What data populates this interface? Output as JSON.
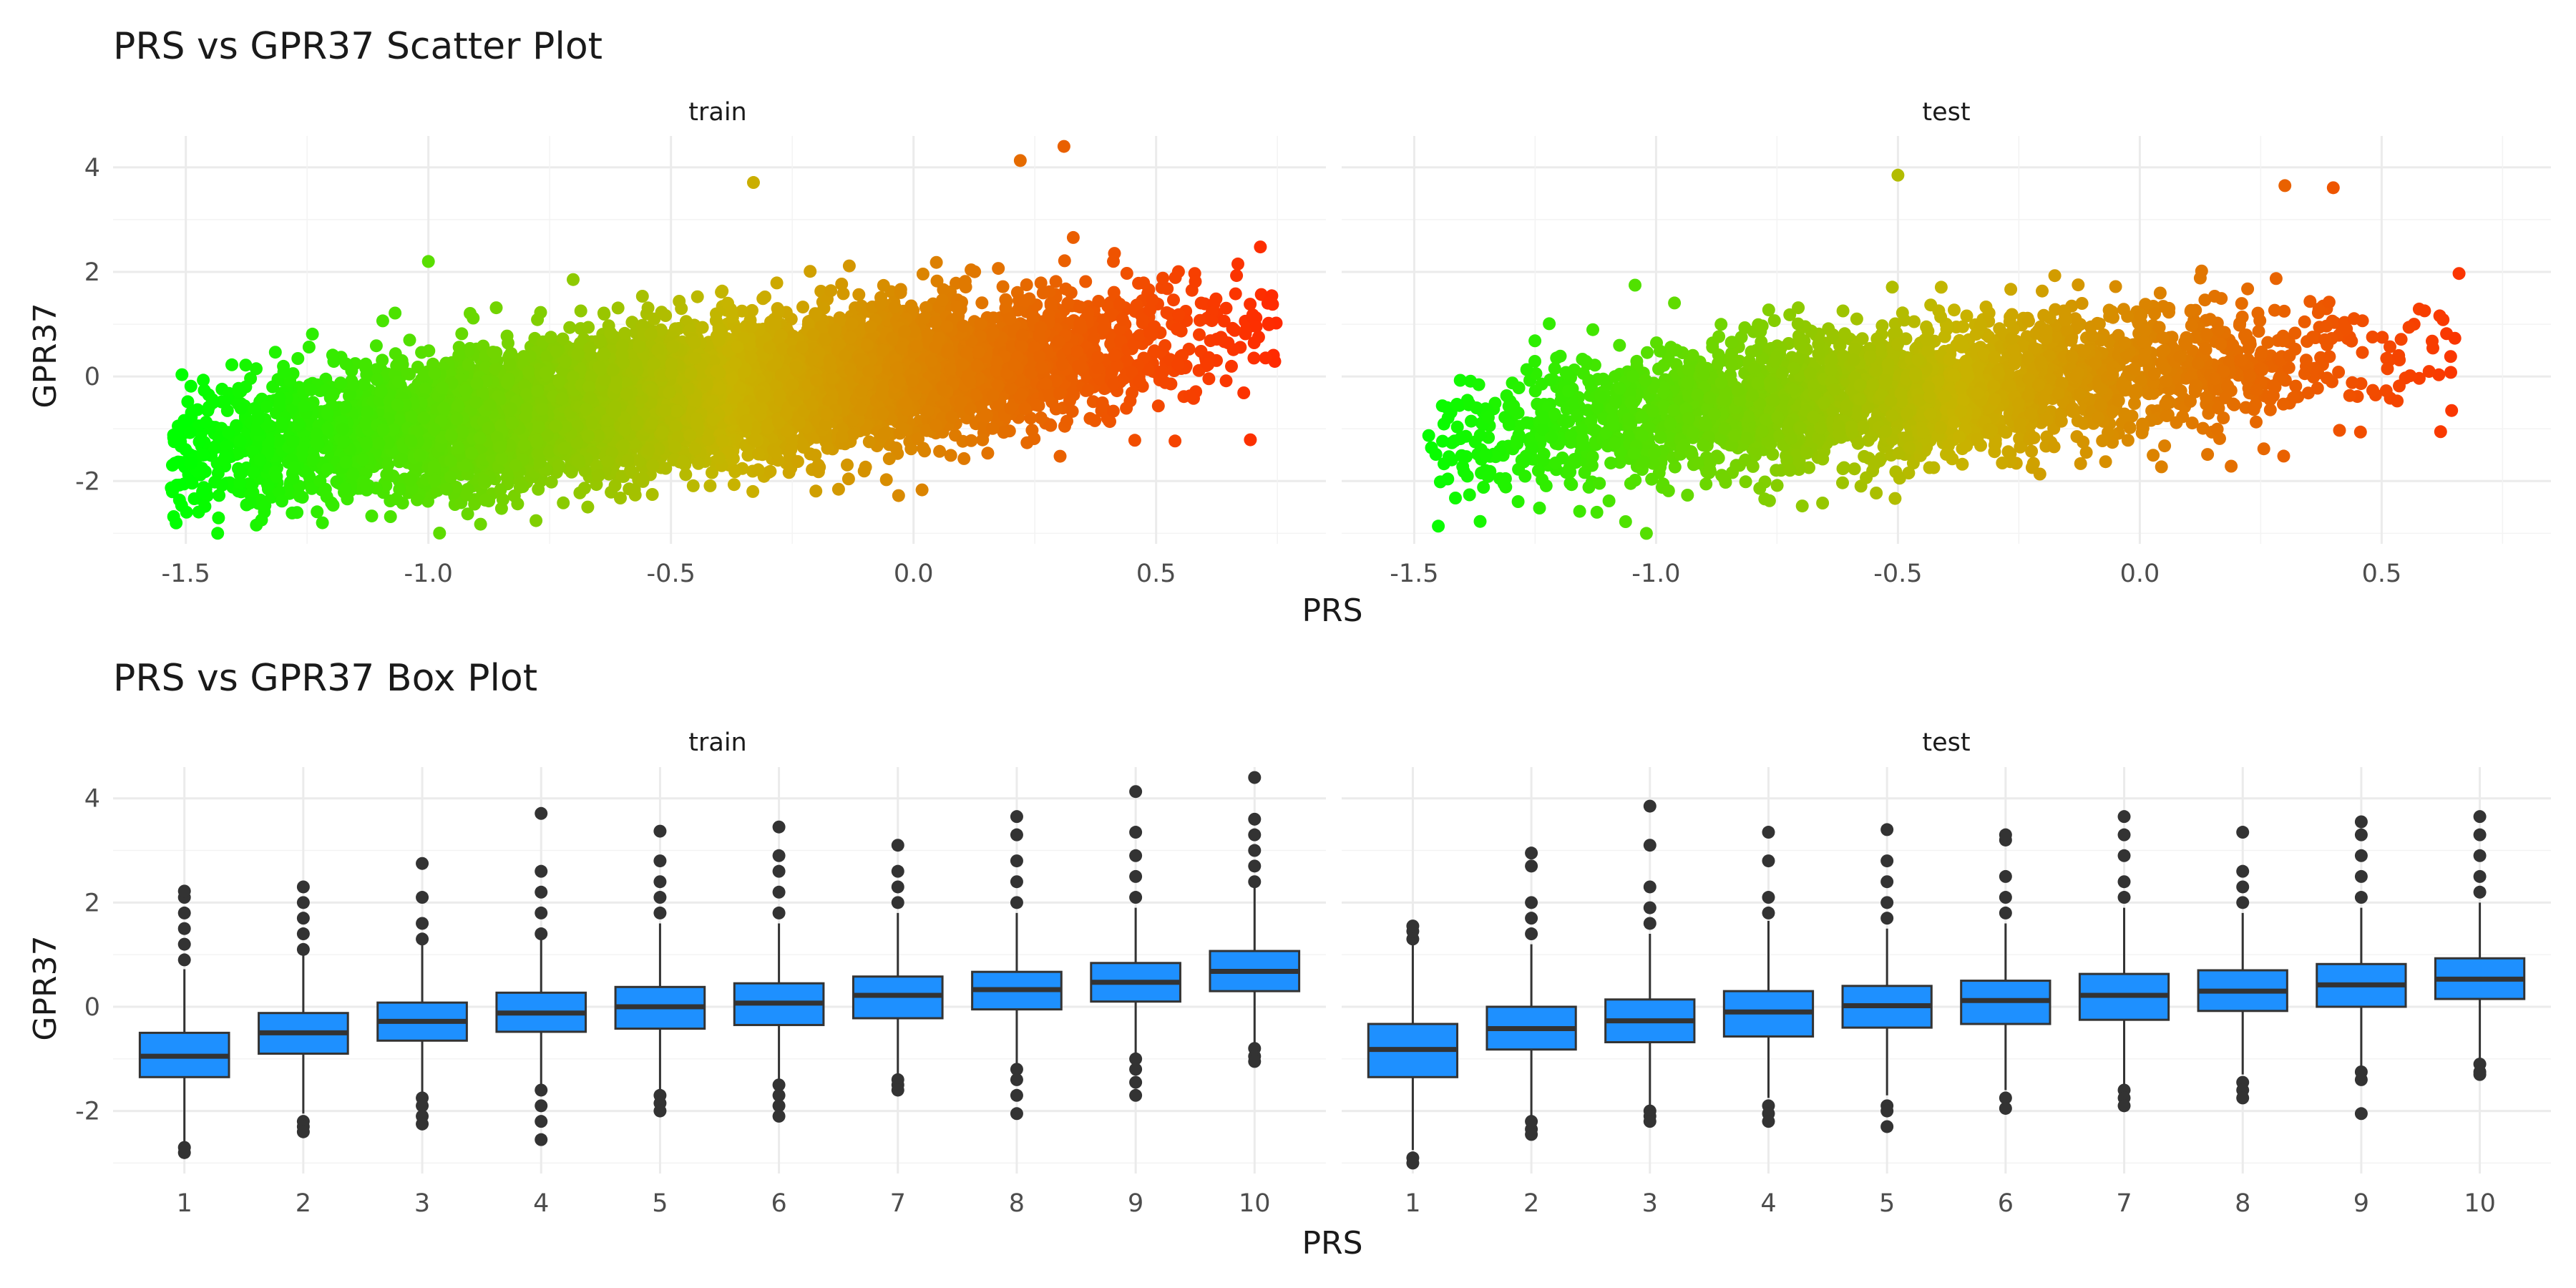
{
  "chart_data": [
    {
      "type": "scatter",
      "title": "PRS vs GPR37 Scatter Plot",
      "xlabel": "PRS",
      "ylabel": "GPR37",
      "panels": [
        "train",
        "test"
      ],
      "xlim": [
        -1.65,
        0.85
      ],
      "ylim": [
        -3.2,
        4.6
      ],
      "x_ticks": [
        -1.5,
        -1.0,
        -0.5,
        0.0,
        0.5
      ],
      "x_tick_labels": [
        "-1.5",
        "-1.0",
        "-0.5",
        "0.0",
        "0.5"
      ],
      "y_ticks": [
        -2,
        0,
        2,
        4
      ],
      "y_tick_labels": [
        "-2",
        "0",
        "2",
        "4"
      ],
      "grid": true,
      "color_scale": {
        "low": "#00ff00",
        "mid": "#c8b400",
        "high": "#ff2a00",
        "mapped_to": "PRS"
      },
      "series": [
        {
          "panel": "train",
          "n_points_approx": 20000,
          "x_range": [
            -1.53,
            0.75
          ],
          "slope_approx": 1.0,
          "intercept_approx": 0.0,
          "residual_sd_approx": 0.65,
          "notable_points": [
            [
              -1.53,
              -2.13
            ],
            [
              -1.52,
              -2.8
            ],
            [
              0.31,
              4.4
            ],
            [
              0.22,
              4.13
            ],
            [
              0.74,
              1.38
            ],
            [
              -0.33,
              3.71
            ],
            [
              -1.0,
              2.2
            ]
          ]
        },
        {
          "panel": "test",
          "n_points_approx": 8000,
          "x_range": [
            -1.47,
            0.66
          ],
          "slope_approx": 0.8,
          "intercept_approx": 0.0,
          "residual_sd_approx": 0.65,
          "notable_points": [
            [
              -1.47,
              -1.13
            ],
            [
              -1.43,
              -0.79
            ],
            [
              -1.02,
              -3.0
            ],
            [
              -0.5,
              3.85
            ],
            [
              0.66,
              1.97
            ],
            [
              0.3,
              3.65
            ],
            [
              0.4,
              3.61
            ]
          ]
        }
      ]
    },
    {
      "type": "box",
      "title": "PRS vs GPR37 Box Plot",
      "xlabel": "PRS",
      "ylabel": "GPR37",
      "panels": [
        "train",
        "test"
      ],
      "categories": [
        "1",
        "2",
        "3",
        "4",
        "5",
        "6",
        "7",
        "8",
        "9",
        "10"
      ],
      "ylim": [
        -3.2,
        4.6
      ],
      "y_ticks": [
        -2,
        0,
        2,
        4
      ],
      "y_tick_labels": [
        "-2",
        "0",
        "2",
        "4"
      ],
      "box_color": "#1e90ff",
      "grid": true,
      "series": [
        {
          "panel": "train",
          "median": [
            -0.95,
            -0.5,
            -0.28,
            -0.12,
            0.0,
            0.07,
            0.22,
            0.33,
            0.47,
            0.68
          ],
          "q1": [
            -1.35,
            -0.9,
            -0.65,
            -0.48,
            -0.42,
            -0.35,
            -0.22,
            -0.05,
            0.1,
            0.3
          ],
          "q3": [
            -0.5,
            -0.12,
            0.08,
            0.27,
            0.38,
            0.45,
            0.58,
            0.67,
            0.84,
            1.07
          ],
          "whisker_low": [
            -2.6,
            -2.05,
            -1.7,
            -1.5,
            -1.6,
            -1.4,
            -1.3,
            -1.1,
            -0.95,
            -0.7
          ],
          "whisker_high": [
            0.72,
            1.0,
            1.2,
            1.3,
            1.6,
            1.6,
            1.8,
            1.8,
            1.9,
            2.3
          ],
          "outliers_low": [
            [
              -2.7,
              -2.8
            ],
            [
              -2.2,
              -2.3,
              -2.4
            ],
            [
              -1.75,
              -1.9,
              -2.1,
              -2.25
            ],
            [
              -1.6,
              -1.9,
              -2.2,
              -2.55
            ],
            [
              -1.7,
              -1.85,
              -2.0
            ],
            [
              -1.5,
              -1.7,
              -1.9,
              -2.1
            ],
            [
              -1.4,
              -1.5,
              -1.6
            ],
            [
              -1.2,
              -1.4,
              -1.7,
              -2.05
            ],
            [
              -1.0,
              -1.2,
              -1.45,
              -1.7
            ],
            [
              -0.8,
              -0.95,
              -1.05
            ]
          ],
          "outliers_high": [
            [
              0.9,
              1.2,
              1.5,
              1.8,
              2.1,
              2.22
            ],
            [
              1.1,
              1.4,
              1.7,
              2.0,
              2.3
            ],
            [
              1.3,
              1.6,
              2.1,
              2.75
            ],
            [
              1.4,
              1.8,
              2.2,
              2.6,
              3.71
            ],
            [
              1.8,
              2.1,
              2.4,
              2.8,
              3.37
            ],
            [
              1.8,
              2.2,
              2.6,
              2.9,
              3.45
            ],
            [
              2.0,
              2.3,
              2.6,
              3.1
            ],
            [
              2.0,
              2.4,
              2.8,
              3.3,
              3.65
            ],
            [
              2.1,
              2.5,
              2.9,
              3.35,
              4.13
            ],
            [
              2.4,
              2.7,
              3.0,
              3.3,
              3.6,
              4.4
            ]
          ]
        },
        {
          "panel": "test",
          "median": [
            -0.82,
            -0.42,
            -0.27,
            -0.1,
            0.02,
            0.12,
            0.22,
            0.3,
            0.42,
            0.53
          ],
          "q1": [
            -1.35,
            -0.82,
            -0.68,
            -0.57,
            -0.4,
            -0.33,
            -0.25,
            -0.08,
            0.0,
            0.15
          ],
          "q3": [
            -0.33,
            0.0,
            0.14,
            0.3,
            0.4,
            0.5,
            0.63,
            0.7,
            0.82,
            0.93
          ],
          "whisker_low": [
            -2.75,
            -2.1,
            -1.9,
            -1.75,
            -1.7,
            -1.6,
            -1.5,
            -1.3,
            -1.15,
            -1.0
          ],
          "whisker_high": [
            1.2,
            1.2,
            1.4,
            1.65,
            1.5,
            1.6,
            1.9,
            1.8,
            1.9,
            2.0
          ],
          "outliers_low": [
            [
              -2.9,
              -3.0
            ],
            [
              -2.2,
              -2.35,
              -2.45
            ],
            [
              -2.0,
              -2.1,
              -2.2
            ],
            [
              -1.9,
              -2.05,
              -2.2
            ],
            [
              -1.9,
              -2.0,
              -2.3
            ],
            [
              -1.75,
              -1.95
            ],
            [
              -1.6,
              -1.75,
              -1.9
            ],
            [
              -1.45,
              -1.6,
              -1.75
            ],
            [
              -1.25,
              -1.4,
              -2.05
            ],
            [
              -1.1,
              -1.25,
              -1.3
            ]
          ],
          "outliers_high": [
            [
              1.3,
              1.45,
              1.55
            ],
            [
              1.4,
              1.7,
              2.0,
              2.7,
              2.95
            ],
            [
              1.6,
              1.9,
              2.3,
              3.1,
              3.85
            ],
            [
              1.8,
              2.1,
              2.8,
              3.35
            ],
            [
              1.7,
              2.0,
              2.4,
              2.8,
              3.4
            ],
            [
              1.8,
              2.1,
              2.5,
              3.2,
              3.3
            ],
            [
              2.1,
              2.4,
              2.9,
              3.3,
              3.65
            ],
            [
              2.0,
              2.3,
              2.6,
              3.35
            ],
            [
              2.1,
              2.5,
              2.9,
              3.3,
              3.55
            ],
            [
              2.2,
              2.5,
              2.9,
              3.3,
              3.65
            ]
          ]
        }
      ]
    }
  ]
}
